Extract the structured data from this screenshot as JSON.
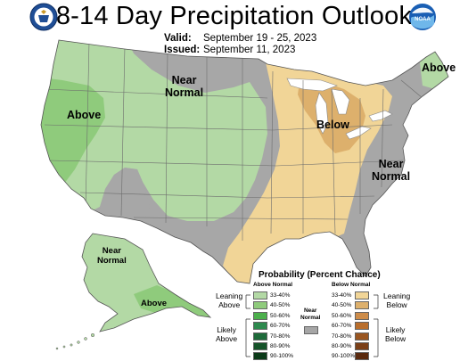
{
  "header": {
    "title": "8-14 Day Precipitation Outlook",
    "valid_label": "Valid:",
    "valid_value": "September 19 - 25, 2023",
    "issued_label": "Issued:",
    "issued_value": "September 11, 2023"
  },
  "logos": {
    "left": "doc-seal",
    "right": "noaa-logo",
    "right_text": "NOAA"
  },
  "regions": {
    "west_above": "Above",
    "north_near_normal": "Near\nNormal",
    "great_lakes_below": "Below",
    "east_near_normal": "Near\nNormal",
    "maine_above": "Above",
    "alaska_near_normal": "Near\nNormal",
    "alaska_above": "Above"
  },
  "legend": {
    "title": "Probability (Percent Chance)",
    "above_header": "Above Normal",
    "below_header": "Below Normal",
    "near_normal_label": "Near\nNormal",
    "leaning_above": "Leaning\nAbove",
    "likely_above": "Likely\nAbove",
    "leaning_below": "Leaning\nBelow",
    "likely_below": "Likely\nBelow",
    "ranges": [
      "33-40%",
      "40-50%",
      "50-60%",
      "60-70%",
      "70-80%",
      "80-90%",
      "90-100%"
    ],
    "above_colors": [
      "#b3d9a5",
      "#8fcb7c",
      "#4cb04c",
      "#2e8a4e",
      "#1e6b3a",
      "#145228",
      "#0b3a18"
    ],
    "below_colors": [
      "#f1d597",
      "#ddb06c",
      "#cd8c4a",
      "#b96e2c",
      "#9a5621",
      "#7a3f17",
      "#5a2a0e"
    ],
    "near_normal_color": "#a6a6a6"
  },
  "colors": {
    "near_normal": "#a7a7a7",
    "above_33": "#b3d9a5",
    "above_40": "#8fcb7c",
    "below_33": "#f1d597",
    "below_40": "#ddb06c",
    "water": "#ffffff"
  }
}
